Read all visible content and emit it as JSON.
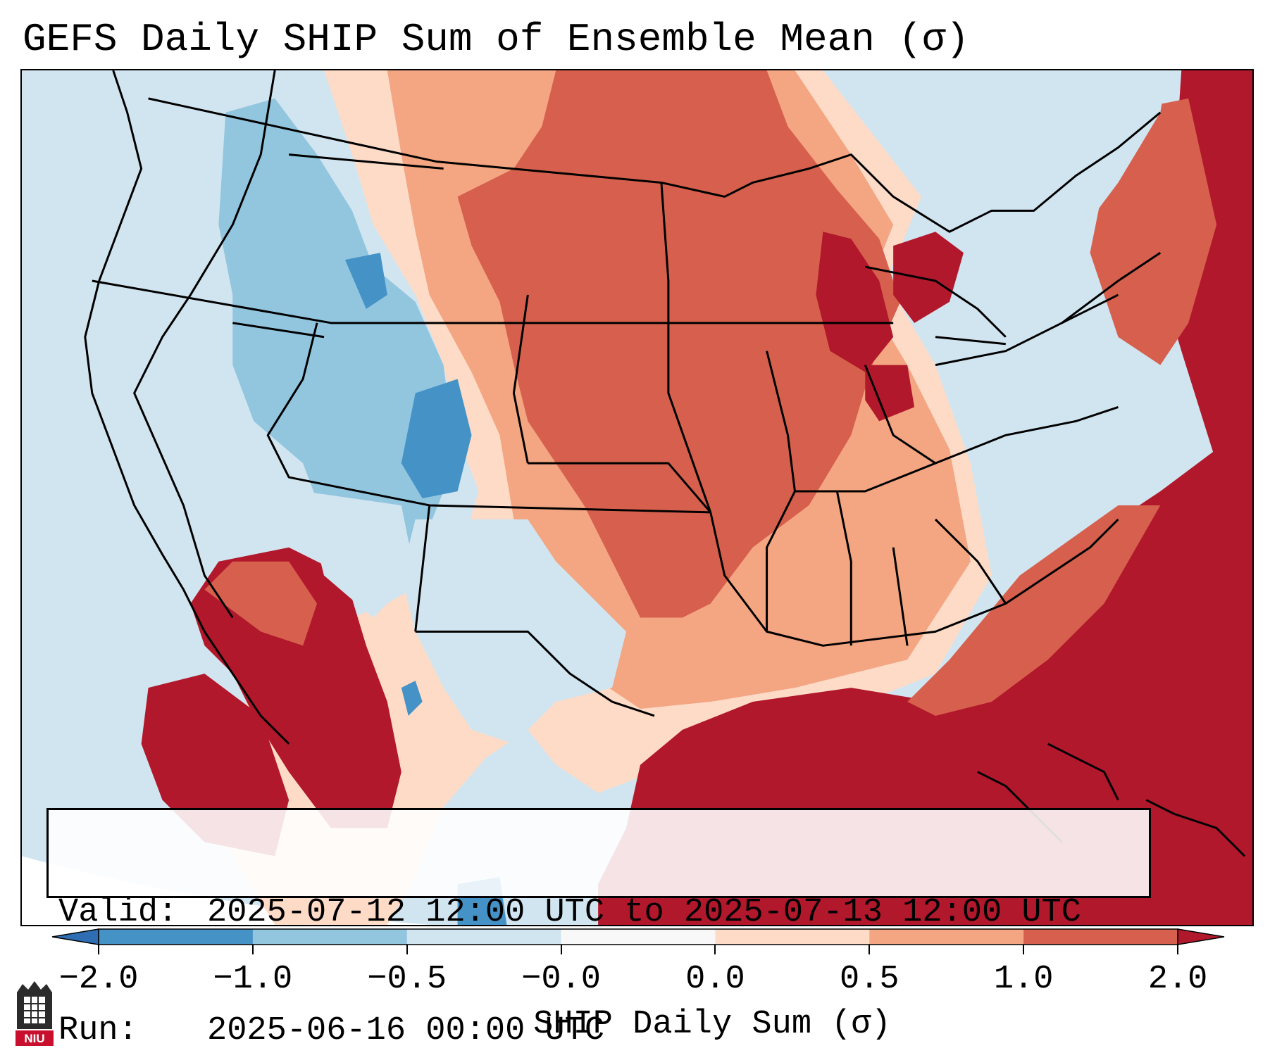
{
  "header": {
    "title": "GEFS Daily SHIP Sum of Ensemble Mean (σ)"
  },
  "info": {
    "valid_label": "Valid:",
    "valid_value": "2025-07-12 12:00 UTC to 2025-07-13 12:00 UTC",
    "run_label": "Run:",
    "run_value": "2025-06-16 00:00 UTC"
  },
  "colorbar": {
    "label": "SHIP Daily Sum (σ)",
    "ticks": [
      "−2.0",
      "−1.0",
      "−0.5",
      "−0.0",
      "0.0",
      "0.5",
      "1.0",
      "2.0"
    ],
    "bins": [
      {
        "color": "#2f6eb3"
      },
      {
        "color": "#4592c7"
      },
      {
        "color": "#92c5de"
      },
      {
        "color": "#d1e5f0"
      },
      {
        "color": "#f8f8f8"
      },
      {
        "color": "#fddbc7"
      },
      {
        "color": "#f4a582"
      },
      {
        "color": "#d6604d"
      },
      {
        "color": "#b2182b"
      }
    ]
  },
  "logo": {
    "text": "NIU"
  }
}
